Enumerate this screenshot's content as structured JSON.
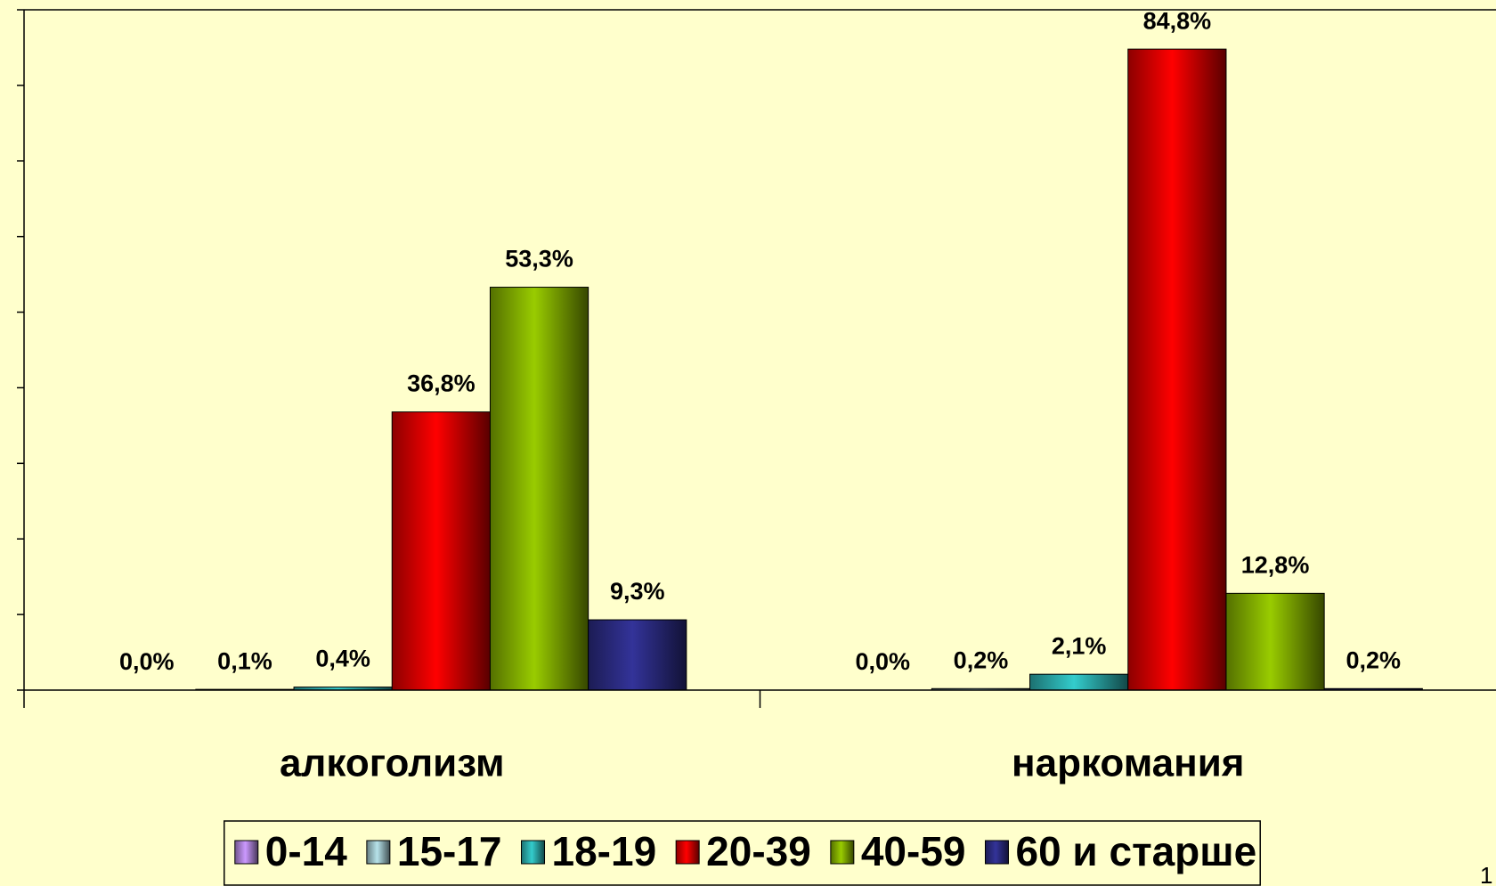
{
  "chart_data": {
    "type": "bar",
    "categories": [
      "алкоголизм",
      "наркомания"
    ],
    "series": [
      {
        "name": "0-14",
        "color": "#cc99ff",
        "values": [
          0.0,
          0.0
        ],
        "value_labels": [
          "0,0%",
          "0,0%"
        ]
      },
      {
        "name": "15-17",
        "color": "#b7e3ea",
        "values": [
          0.1,
          0.2
        ],
        "value_labels": [
          "0,1%",
          "0,2%"
        ]
      },
      {
        "name": "18-19",
        "color": "#33cccc",
        "values": [
          0.4,
          2.1
        ],
        "value_labels": [
          "0,4%",
          "2,1%"
        ]
      },
      {
        "name": "20-39",
        "color": "#ff0000",
        "values": [
          36.8,
          84.8
        ],
        "value_labels": [
          "36,8%",
          "84,8%"
        ]
      },
      {
        "name": "40-59",
        "color": "#99cc00",
        "values": [
          53.3,
          12.8
        ],
        "value_labels": [
          "53,3%",
          "12,8%"
        ]
      },
      {
        "name": "60 и старше",
        "color": "#333399",
        "values": [
          9.3,
          0.2
        ],
        "value_labels": [
          "9,3%",
          "0,2%"
        ]
      }
    ],
    "ylim": [
      0,
      90
    ],
    "yticks": [
      0,
      10,
      20,
      30,
      40,
      50,
      60,
      70,
      80,
      90
    ],
    "legend": "bottom"
  },
  "page_number": "1"
}
